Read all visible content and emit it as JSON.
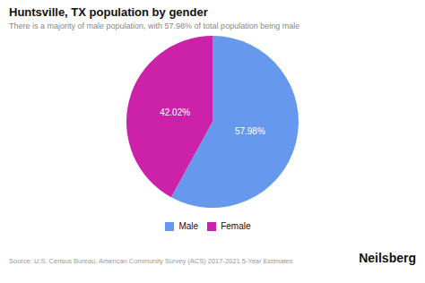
{
  "chart_data": {
    "type": "pie",
    "title": "Huntsville, TX population by gender",
    "subtitle": "There is a majority of male population, with 57.98% of total population being male",
    "categories": [
      "Male",
      "Female"
    ],
    "values": [
      57.98,
      42.02
    ],
    "value_labels": [
      "57.98%",
      "42.02%"
    ],
    "data_labels": true,
    "colors": [
      "#6699ee",
      "#cc22aa"
    ],
    "legend": "bottom",
    "annotations": [
      "Source: U.S. Census Bureau, American Community Survey (ACS) 2017-2021 5-Year Estimates",
      "Neilsberg"
    ]
  }
}
